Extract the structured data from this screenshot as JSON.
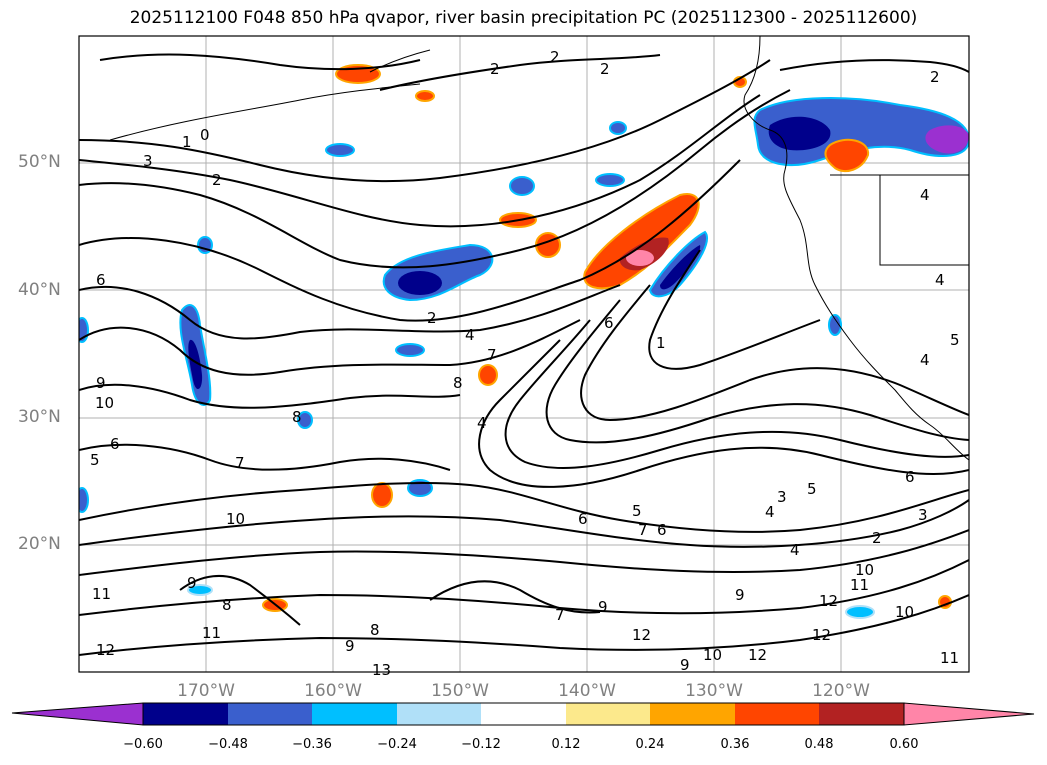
{
  "title": "2025112100 F048 850 hPa qvapor, river basin precipitation PC (2025112300 - 2025112600)",
  "latitude_labels": [
    "50°N",
    "40°N",
    "30°N",
    "20°N"
  ],
  "longitude_labels": [
    "170°W",
    "160°W",
    "150°W",
    "140°W",
    "130°W",
    "120°W"
  ],
  "colorbar": {
    "ticks": [
      "−0.60",
      "−0.48",
      "−0.36",
      "−0.24",
      "−0.12",
      "0.12",
      "0.24",
      "0.36",
      "0.48",
      "0.60"
    ],
    "colors": [
      "#9b30d0",
      "#00008b",
      "#3a5fcd",
      "#00bfff",
      "#b0e0f8",
      "#ffffff",
      "#fce98c",
      "#ffa500",
      "#ff4500",
      "#b22222",
      "#ff85a8"
    ]
  },
  "contour_labels": [
    "0",
    "1",
    "2",
    "2",
    "2",
    "2",
    "2",
    "3",
    "2",
    "4",
    "6",
    "7",
    "8",
    "8",
    "9",
    "10",
    "6",
    "5",
    "7",
    "5",
    "10",
    "11",
    "9",
    "8",
    "9",
    "11",
    "12",
    "13",
    "12",
    "10",
    "12",
    "10",
    "11",
    "9",
    "7",
    "8",
    "6",
    "5",
    "4",
    "3",
    "4",
    "6",
    "1",
    "4",
    "2",
    "3",
    "6",
    "9",
    "12",
    "12",
    "11",
    "10",
    "7",
    "6",
    "9",
    "4",
    "5",
    "4",
    "4"
  ]
}
